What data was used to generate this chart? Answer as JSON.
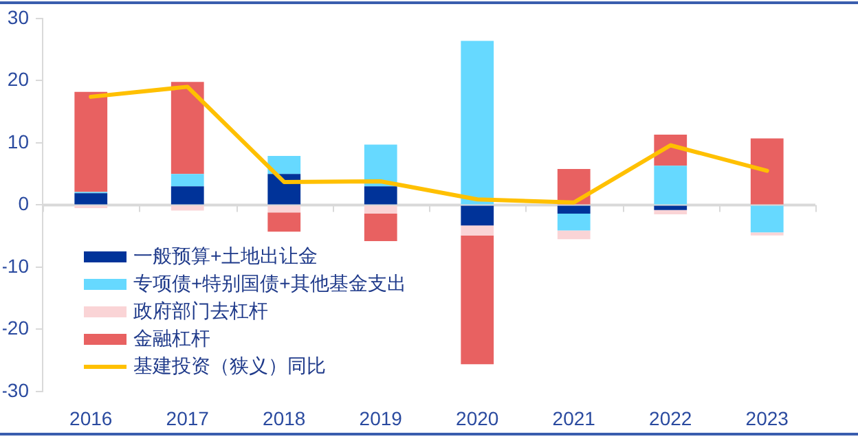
{
  "chart_data": {
    "type": "bar",
    "stacked": true,
    "legend": "bottom left",
    "categories": [
      "2016",
      "2017",
      "2018",
      "2019",
      "2020",
      "2021",
      "2022",
      "2023"
    ],
    "series": [
      {
        "name": "一般预算+土地出让金",
        "color": "#003399",
        "values": [
          1.9,
          3.0,
          5.0,
          3.0,
          -3.3,
          -1.4,
          -0.8,
          null
        ]
      },
      {
        "name": "专项债+特别国债+其他基金支出",
        "color": "#66d9ff",
        "values": [
          0.2,
          2.0,
          2.9,
          6.7,
          26.4,
          -2.7,
          6.3,
          -4.4
        ]
      },
      {
        "name": "政府部门去杠杆",
        "color": "#fad4d6",
        "values": [
          -0.5,
          -0.9,
          -1.2,
          -1.4,
          -1.6,
          -1.4,
          -0.7,
          -0.5
        ]
      },
      {
        "name": "金融杠杆",
        "color": "#e86161",
        "values": [
          16.1,
          14.8,
          -3.1,
          -4.4,
          -20.7,
          5.8,
          5.0,
          10.7
        ]
      },
      {
        "name": "基建投资（狭义）同比",
        "type": "line",
        "color": "#ffc000",
        "values": [
          17.4,
          19.0,
          3.7,
          3.8,
          0.9,
          0.4,
          9.6,
          5.5
        ]
      }
    ],
    "ylim": [
      -30,
      30
    ],
    "yticks": [
      -30,
      -20,
      -10,
      0,
      10,
      20,
      30
    ]
  }
}
